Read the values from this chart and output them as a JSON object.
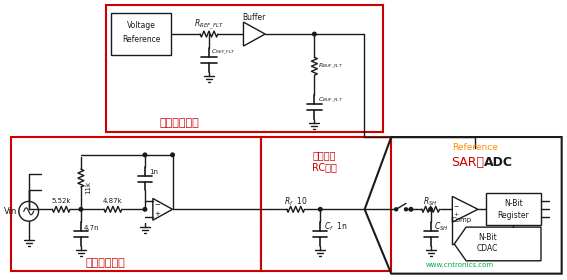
{
  "bg_color": "#ffffff",
  "red": "#cc0000",
  "blk": "#1a1a1a",
  "orange": "#ff8c00",
  "green": "#00aa44",
  "fig_w": 5.67,
  "fig_h": 2.8,
  "dpi": 100,
  "label1": "基准驱动电路",
  "label2": "抗混叠滤波器",
  "label3_1": "输入驱动",
  "label3_2": "RC电路",
  "label4": "Reference",
  "label5_1": "SAR型",
  "label5_2": "ADC",
  "watermark": "www.cntronics.com",
  "vref_label1": "Voltage",
  "vref_label2": "Reference",
  "buffer_label": "Buffer",
  "comp_label": "Comp",
  "nbit_reg1": "N-Bit",
  "nbit_reg2": "Register",
  "nbit_cdac1": "N-Bit",
  "nbit_cdac2": "CDAC"
}
